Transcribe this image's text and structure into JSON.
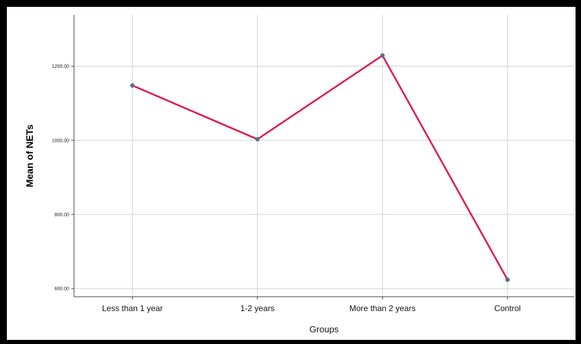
{
  "chart_data": {
    "type": "line",
    "title": "",
    "xlabel": "Groups",
    "ylabel": "Mean of NETs",
    "categories": [
      "Less than 1 year",
      "1-2 years",
      "More than 2 years",
      "Control"
    ],
    "series": [
      {
        "values": [
          1148,
          1003,
          1229,
          624
        ]
      }
    ],
    "ylim": [
      578,
      1338
    ],
    "yticks": [
      600,
      800,
      1000,
      1200
    ],
    "ytick_labels": [
      "600.00",
      "800.00",
      "1000.00",
      "1200.00"
    ],
    "grid": true,
    "legend": "none"
  },
  "colors": {
    "line": "#e0174b",
    "marker": "#5b6e8c",
    "grid": "#d0d0d0",
    "axis": "#444444",
    "border": "#000000"
  }
}
